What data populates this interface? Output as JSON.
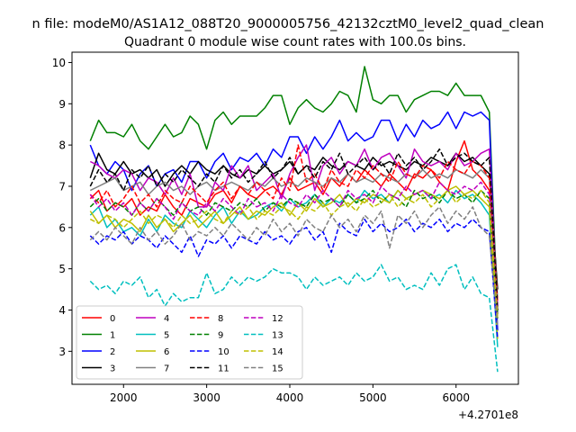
{
  "figure": {
    "suptitle": "n file: modeM0/AS1A12_088T20_9000005756_42132cztM0_level2_quad_clean",
    "offset_label": "+4.2701e8"
  },
  "chart_data": {
    "type": "line",
    "title": "Quadrant 0 module wise count rates with 100.0s bins.",
    "xlabel": "",
    "ylabel": "",
    "xlim": [
      1380,
      6750
    ],
    "ylim": [
      2.2,
      10.25
    ],
    "xticks": [
      2000,
      3000,
      4000,
      5000,
      6000
    ],
    "yticks": [
      3,
      4,
      5,
      6,
      7,
      8,
      9,
      10
    ],
    "grid": false,
    "legend_position": "lower-left",
    "x": [
      1600,
      1700,
      1800,
      1900,
      2000,
      2100,
      2200,
      2300,
      2400,
      2500,
      2600,
      2700,
      2800,
      2900,
      3000,
      3100,
      3200,
      3300,
      3400,
      3500,
      3600,
      3700,
      3800,
      3900,
      4000,
      4100,
      4200,
      4300,
      4400,
      4500,
      4600,
      4700,
      4800,
      4900,
      5000,
      5100,
      5200,
      5300,
      5400,
      5500,
      5600,
      5700,
      5800,
      5900,
      6000,
      6100,
      6200,
      6300,
      6400,
      6500
    ],
    "series": [
      {
        "name": "0",
        "color": "#ff0000",
        "dash": "solid",
        "values": [
          6.7,
          6.9,
          6.4,
          6.6,
          6.5,
          6.7,
          6.3,
          6.5,
          6.4,
          6.8,
          6.5,
          6.3,
          6.7,
          6.6,
          6.5,
          6.8,
          6.9,
          6.6,
          7.0,
          6.8,
          6.7,
          6.9,
          7.0,
          6.8,
          7.2,
          6.9,
          7.0,
          7.1,
          6.8,
          7.2,
          7.0,
          7.3,
          7.1,
          7.4,
          7.2,
          7.0,
          7.3,
          7.1,
          6.9,
          7.3,
          7.2,
          7.4,
          7.1,
          6.9,
          7.6,
          8.1,
          7.4,
          7.2,
          6.9,
          4.0
        ]
      },
      {
        "name": "1",
        "color": "#008000",
        "dash": "solid",
        "values": [
          8.1,
          8.6,
          8.3,
          8.3,
          8.2,
          8.5,
          8.1,
          7.9,
          8.2,
          8.5,
          8.2,
          8.3,
          8.7,
          8.5,
          7.9,
          8.6,
          8.8,
          8.5,
          8.7,
          8.7,
          8.7,
          8.9,
          9.2,
          9.2,
          8.5,
          8.9,
          9.1,
          8.9,
          8.8,
          9.0,
          9.3,
          9.2,
          8.8,
          9.9,
          9.1,
          9.0,
          9.2,
          9.2,
          8.8,
          9.1,
          9.2,
          9.3,
          9.3,
          9.2,
          9.5,
          9.2,
          9.2,
          9.2,
          8.8,
          3.9
        ]
      },
      {
        "name": "2",
        "color": "#0000ff",
        "dash": "solid",
        "values": [
          8.0,
          7.5,
          7.3,
          7.6,
          7.4,
          6.9,
          7.3,
          7.5,
          7.0,
          7.3,
          7.4,
          7.1,
          7.6,
          7.6,
          7.2,
          7.6,
          7.8,
          7.4,
          7.7,
          7.6,
          7.8,
          7.5,
          7.9,
          7.7,
          8.2,
          8.2,
          7.8,
          8.2,
          7.9,
          8.2,
          8.6,
          8.1,
          8.3,
          8.1,
          8.2,
          8.6,
          8.6,
          8.1,
          8.5,
          8.2,
          8.6,
          8.4,
          8.5,
          8.8,
          8.4,
          8.8,
          8.7,
          8.8,
          8.6,
          3.5
        ]
      },
      {
        "name": "3",
        "color": "#000000",
        "dash": "solid",
        "values": [
          7.2,
          7.8,
          7.4,
          7.3,
          7.6,
          7.3,
          7.4,
          7.2,
          7.4,
          7.0,
          7.3,
          7.5,
          7.3,
          7.6,
          7.4,
          7.3,
          7.5,
          7.3,
          7.2,
          7.4,
          7.3,
          7.5,
          7.3,
          7.4,
          7.6,
          7.3,
          7.5,
          7.4,
          7.7,
          7.5,
          7.4,
          7.6,
          7.5,
          7.4,
          7.7,
          7.5,
          7.6,
          7.5,
          7.4,
          7.6,
          7.5,
          7.7,
          7.6,
          7.5,
          7.8,
          7.6,
          7.7,
          7.5,
          7.3,
          4.5
        ]
      },
      {
        "name": "4",
        "color": "#bf00bf",
        "dash": "solid",
        "values": [
          7.6,
          7.5,
          7.3,
          7.2,
          7.4,
          7.3,
          6.9,
          7.2,
          7.1,
          6.8,
          7.2,
          6.8,
          7.3,
          6.5,
          6.5,
          7.1,
          6.9,
          7.5,
          7.2,
          7.5,
          6.9,
          7.1,
          7.3,
          6.7,
          7.3,
          7.7,
          8.0,
          6.9,
          7.5,
          7.7,
          7.3,
          7.6,
          7.5,
          7.9,
          7.4,
          7.7,
          7.8,
          7.5,
          7.2,
          7.9,
          7.6,
          7.5,
          7.6,
          7.4,
          7.8,
          7.5,
          7.6,
          7.8,
          7.9,
          4.1
        ]
      },
      {
        "name": "5",
        "color": "#00bfbf",
        "dash": "solid",
        "values": [
          6.3,
          6.5,
          6.0,
          6.2,
          5.9,
          6.0,
          5.8,
          6.2,
          5.9,
          6.3,
          6.1,
          6.0,
          6.4,
          6.2,
          6.0,
          6.3,
          6.5,
          6.1,
          6.4,
          6.2,
          6.3,
          6.5,
          6.6,
          6.4,
          6.7,
          6.5,
          6.6,
          6.8,
          6.5,
          6.7,
          6.6,
          6.8,
          6.6,
          6.9,
          6.7,
          6.8,
          6.6,
          6.9,
          6.7,
          6.8,
          6.9,
          6.7,
          6.8,
          6.6,
          6.9,
          6.7,
          6.8,
          6.6,
          6.3,
          3.1
        ]
      },
      {
        "name": "6",
        "color": "#bfbf00",
        "dash": "solid",
        "values": [
          6.4,
          6.1,
          6.3,
          6.0,
          6.2,
          6.1,
          5.9,
          6.3,
          6.0,
          6.2,
          5.9,
          6.1,
          6.3,
          6.0,
          6.2,
          6.4,
          6.1,
          6.3,
          6.5,
          6.2,
          6.4,
          6.3,
          6.5,
          6.6,
          6.3,
          6.6,
          6.4,
          6.7,
          6.5,
          6.6,
          6.8,
          6.5,
          6.7,
          6.6,
          6.8,
          6.7,
          6.6,
          6.9,
          6.7,
          6.8,
          6.9,
          6.8,
          6.7,
          6.9,
          7.0,
          6.8,
          6.9,
          6.7,
          6.5,
          3.3
        ]
      },
      {
        "name": "7",
        "color": "#808080",
        "dash": "solid",
        "values": [
          6.9,
          7.0,
          7.1,
          7.2,
          6.9,
          7.0,
          7.1,
          6.8,
          7.0,
          7.1,
          6.9,
          7.0,
          6.8,
          7.0,
          7.1,
          6.9,
          7.0,
          7.1,
          7.0,
          6.9,
          7.1,
          7.0,
          7.2,
          7.0,
          7.1,
          7.0,
          7.2,
          7.1,
          7.0,
          7.2,
          7.1,
          7.3,
          7.1,
          7.2,
          7.1,
          7.3,
          7.2,
          7.1,
          7.3,
          7.2,
          7.4,
          7.2,
          7.3,
          7.2,
          7.4,
          7.3,
          7.2,
          7.4,
          7.2,
          4.3
        ]
      },
      {
        "name": "8",
        "color": "#ff0000",
        "dash": "dashed",
        "values": [
          6.8,
          6.6,
          6.9,
          6.5,
          6.7,
          7.0,
          6.6,
          6.8,
          6.5,
          6.9,
          6.7,
          6.6,
          7.0,
          6.8,
          6.6,
          6.9,
          7.1,
          6.7,
          7.0,
          6.8,
          7.1,
          6.9,
          6.7,
          7.2,
          6.9,
          8.0,
          7.1,
          7.3,
          6.9,
          7.4,
          7.1,
          7.0,
          7.4,
          7.2,
          7.5,
          7.3,
          7.1,
          7.6,
          7.3,
          7.2,
          7.5,
          7.4,
          7.2,
          7.6,
          7.4,
          7.3,
          7.6,
          7.5,
          7.2,
          4.2
        ]
      },
      {
        "name": "9",
        "color": "#008000",
        "dash": "dashed",
        "values": [
          6.5,
          6.7,
          6.4,
          6.6,
          6.5,
          6.3,
          6.6,
          6.4,
          6.7,
          6.5,
          6.3,
          6.6,
          6.4,
          6.5,
          6.3,
          6.6,
          6.5,
          6.4,
          6.6,
          6.5,
          6.7,
          6.4,
          6.6,
          6.5,
          6.7,
          6.6,
          6.5,
          6.8,
          6.6,
          6.7,
          6.5,
          6.8,
          6.6,
          6.7,
          6.9,
          6.6,
          6.8,
          6.7,
          6.5,
          6.9,
          6.7,
          6.8,
          6.6,
          6.9,
          6.7,
          6.8,
          6.6,
          6.9,
          6.7,
          3.8
        ]
      },
      {
        "name": "10",
        "color": "#0000ff",
        "dash": "dashed",
        "values": [
          5.8,
          5.6,
          5.8,
          5.7,
          5.9,
          5.6,
          5.8,
          5.7,
          5.5,
          5.8,
          5.6,
          5.4,
          5.8,
          5.3,
          5.7,
          5.6,
          5.8,
          5.5,
          5.8,
          5.7,
          5.6,
          5.9,
          5.7,
          5.8,
          5.6,
          5.9,
          6.0,
          5.7,
          5.9,
          5.4,
          6.1,
          5.9,
          5.8,
          6.2,
          5.9,
          6.1,
          5.9,
          6.0,
          6.2,
          5.9,
          6.1,
          6.0,
          6.2,
          5.9,
          6.1,
          6.0,
          6.2,
          6.0,
          5.9,
          3.3
        ]
      },
      {
        "name": "11",
        "color": "#000000",
        "dash": "dashed",
        "values": [
          7.0,
          7.4,
          7.1,
          7.3,
          6.9,
          7.4,
          7.2,
          7.5,
          7.0,
          7.3,
          7.1,
          7.4,
          7.2,
          7.0,
          7.3,
          7.1,
          7.5,
          7.2,
          7.4,
          7.1,
          7.3,
          7.6,
          7.2,
          7.4,
          7.7,
          7.3,
          7.5,
          7.2,
          7.6,
          7.4,
          7.8,
          7.3,
          7.5,
          7.7,
          7.4,
          7.6,
          7.3,
          7.8,
          7.5,
          7.7,
          7.4,
          7.6,
          7.9,
          7.5,
          7.7,
          7.8,
          7.6,
          7.5,
          7.7,
          4.0
        ]
      },
      {
        "name": "12",
        "color": "#bf00bf",
        "dash": "dashed",
        "values": [
          6.8,
          6.5,
          6.7,
          6.4,
          6.6,
          6.3,
          6.6,
          6.4,
          6.7,
          6.5,
          6.2,
          6.6,
          6.4,
          6.3,
          6.6,
          6.4,
          6.7,
          6.5,
          6.3,
          6.7,
          6.5,
          6.6,
          6.4,
          6.8,
          6.6,
          6.5,
          6.8,
          6.6,
          6.9,
          6.7,
          6.5,
          6.9,
          6.7,
          6.8,
          6.6,
          7.0,
          6.8,
          6.7,
          7.0,
          6.8,
          6.9,
          6.7,
          7.1,
          6.9,
          6.8,
          7.0,
          6.9,
          7.1,
          6.8,
          3.8
        ]
      },
      {
        "name": "13",
        "color": "#00bfbf",
        "dash": "dashed",
        "values": [
          4.7,
          4.5,
          4.6,
          4.4,
          4.7,
          4.6,
          4.8,
          4.3,
          4.5,
          4.1,
          4.4,
          4.2,
          4.3,
          4.3,
          4.9,
          4.4,
          4.5,
          4.8,
          4.6,
          4.8,
          4.7,
          4.8,
          5.0,
          4.9,
          4.9,
          4.8,
          4.5,
          4.8,
          4.6,
          4.7,
          4.8,
          4.6,
          4.9,
          4.7,
          4.8,
          5.1,
          4.7,
          4.8,
          4.5,
          4.6,
          4.5,
          4.9,
          4.6,
          5.0,
          5.1,
          4.5,
          4.8,
          4.4,
          4.3,
          2.5
        ]
      },
      {
        "name": "14",
        "color": "#bfbf00",
        "dash": "dashed",
        "values": [
          6.2,
          6.1,
          6.3,
          6.2,
          6.0,
          6.2,
          6.4,
          6.1,
          6.3,
          6.2,
          6.0,
          6.3,
          6.1,
          6.2,
          6.4,
          6.2,
          6.1,
          6.4,
          6.3,
          6.5,
          6.2,
          6.4,
          6.3,
          6.5,
          6.4,
          6.2,
          6.5,
          6.4,
          6.6,
          6.3,
          6.5,
          6.6,
          6.4,
          6.7,
          6.5,
          6.6,
          6.8,
          6.5,
          6.7,
          6.6,
          6.8,
          6.5,
          6.7,
          6.9,
          6.6,
          6.8,
          6.7,
          6.9,
          6.6,
          3.8
        ]
      },
      {
        "name": "15",
        "color": "#808080",
        "dash": "dashed",
        "values": [
          5.7,
          5.9,
          5.7,
          6.0,
          5.8,
          5.6,
          6.0,
          5.7,
          5.9,
          5.6,
          5.8,
          6.1,
          5.7,
          5.9,
          5.8,
          6.0,
          5.8,
          6.1,
          5.9,
          5.7,
          6.0,
          5.8,
          6.2,
          5.9,
          6.1,
          5.8,
          6.2,
          6.0,
          5.9,
          6.3,
          6.0,
          6.2,
          5.9,
          6.3,
          6.1,
          6.4,
          5.5,
          6.3,
          6.1,
          6.4,
          6.0,
          6.3,
          6.5,
          6.1,
          6.4,
          6.2,
          6.5,
          6.0,
          5.8,
          3.6
        ]
      }
    ]
  }
}
